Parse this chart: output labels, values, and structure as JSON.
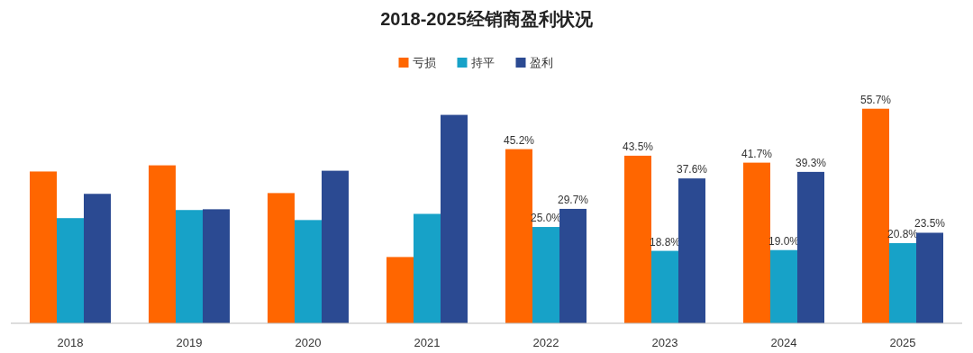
{
  "chart_data": {
    "type": "bar",
    "title": "2018-2025经销商盈利状况",
    "categories": [
      "2018",
      "2019",
      "2020",
      "2021",
      "2022",
      "2023",
      "2024",
      "2025"
    ],
    "legend": "top",
    "series": [
      {
        "name": "亏损",
        "color": "#ff6600",
        "values": [
          39.4,
          41.0,
          33.8,
          17.2,
          45.2,
          43.5,
          41.7,
          55.7
        ],
        "value_labels": [
          null,
          null,
          null,
          null,
          "45.2%",
          "43.5%",
          "41.7%",
          "55.7%"
        ]
      },
      {
        "name": "持平",
        "color": "#17a2c8",
        "values": [
          27.3,
          29.4,
          26.8,
          28.4,
          25.0,
          18.8,
          19.0,
          20.8
        ],
        "value_labels": [
          null,
          null,
          null,
          null,
          "25.0%",
          "18.8%",
          "19.0%",
          "20.8%"
        ]
      },
      {
        "name": "盈利",
        "color": "#2b4a92",
        "values": [
          33.6,
          29.6,
          39.6,
          54.1,
          29.7,
          37.6,
          39.3,
          23.5
        ],
        "value_labels": [
          null,
          null,
          null,
          null,
          "29.7%",
          "37.6%",
          "39.3%",
          "23.5%"
        ]
      }
    ]
  }
}
